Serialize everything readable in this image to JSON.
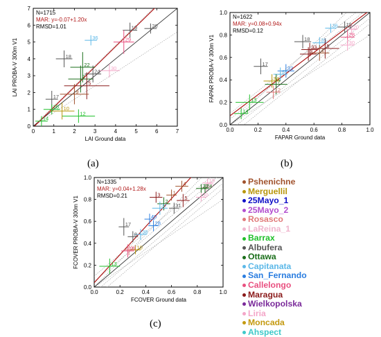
{
  "captions": [
    "(a)",
    "(b)",
    "(c)"
  ],
  "legend": [
    {
      "name": "Pshenichne",
      "color": "#a0522d"
    },
    {
      "name": "Merguellil",
      "color": "#b8960c"
    },
    {
      "name": "25Mayo_1",
      "color": "#1010c8"
    },
    {
      "name": "25Mayo_2",
      "color": "#b24fd0"
    },
    {
      "name": "Rosasco",
      "color": "#e07a7a"
    },
    {
      "name": "LaReina_1",
      "color": "#f0b6ce"
    },
    {
      "name": "Barrax",
      "color": "#1fbf2a"
    },
    {
      "name": "Albufera",
      "color": "#555555"
    },
    {
      "name": "Ottawa",
      "color": "#1a6e1a"
    },
    {
      "name": "Capitanata",
      "color": "#5cb8e8"
    },
    {
      "name": "San_Fernando",
      "color": "#2a7de0"
    },
    {
      "name": "Callelongo",
      "color": "#e95080"
    },
    {
      "name": "Maragua",
      "color": "#8a1a1a"
    },
    {
      "name": "Wielkopolska",
      "color": "#7a2a9a"
    },
    {
      "name": "Liria",
      "color": "#f4a6c8"
    },
    {
      "name": "Moncada",
      "color": "#c49a10"
    },
    {
      "name": "Ahspect",
      "color": "#3ec9c9"
    }
  ],
  "chart_data": [
    {
      "type": "scatter",
      "xlabel": "LAI Ground data",
      "ylabel": "LAI PROBA-V 300m V1",
      "xlim": [
        0,
        7
      ],
      "ylim": [
        0,
        7
      ],
      "xticks": [
        "0",
        "1",
        "2",
        "3",
        "4",
        "5",
        "6",
        "7"
      ],
      "yticks": [
        "0",
        "1",
        "2",
        "3",
        "4",
        "5",
        "6",
        "7"
      ],
      "stats": {
        "n": "N=1715",
        "mar": "MAR: y=-0.07+1.20x",
        "rmsd": "RMSD=1.01"
      },
      "points": [
        {
          "label": "19",
          "site": "Albufera",
          "x": 4.7,
          "y": 5.7,
          "ex": 0.35,
          "ey": 0.45
        },
        {
          "label": "20",
          "site": "Albufera",
          "x": 5.7,
          "y": 5.8,
          "ex": 0.3,
          "ey": 0.3
        },
        {
          "label": "36",
          "site": "Capitanata",
          "x": 2.8,
          "y": 5.1,
          "ex": 0.3,
          "ey": 0.3
        },
        {
          "label": "29",
          "site": "Callelongo",
          "x": 4.4,
          "y": 5.0,
          "ex": 0.5,
          "ey": 0.7
        },
        {
          "label": "18",
          "site": "Albufera",
          "x": 1.5,
          "y": 4.0,
          "ex": 0.4,
          "ey": 0.5
        },
        {
          "label": "22",
          "site": "Ottawa",
          "x": 2.4,
          "y": 3.5,
          "ex": 0.6,
          "ey": 0.9
        },
        {
          "label": "24",
          "site": "Albufera",
          "x": 2.9,
          "y": 3.1,
          "ex": 0.4,
          "ey": 0.5
        },
        {
          "label": "30",
          "site": "Liria",
          "x": 3.7,
          "y": 3.3,
          "ex": 0.5,
          "ey": 0.4
        },
        {
          "label": "2",
          "site": "Ottawa",
          "x": 2.3,
          "y": 2.8,
          "ex": 0.6,
          "ey": 0.8
        },
        {
          "label": "5",
          "site": "Maragua",
          "x": 2.6,
          "y": 2.4,
          "ex": 1.1,
          "ey": 0.8
        },
        {
          "label": "17",
          "site": "Albufera",
          "x": 0.9,
          "y": 1.6,
          "ex": 0.3,
          "ey": 0.5
        },
        {
          "label": "9",
          "site": "Pshenichne",
          "x": 2.0,
          "y": 1.9,
          "ex": 0.7,
          "ey": 0.6
        },
        {
          "label": "12",
          "site": "Barrax",
          "x": 2.2,
          "y": 0.6,
          "ex": 0.8,
          "ey": 0.4
        },
        {
          "label": "10",
          "site": "Merguellil",
          "x": 1.4,
          "y": 0.9,
          "ex": 0.6,
          "ey": 0.5
        },
        {
          "label": "25",
          "site": "Barrax",
          "x": 0.9,
          "y": 1.0,
          "ex": 0.4,
          "ey": 0.3
        },
        {
          "label": "14",
          "site": "Barrax",
          "x": 0.4,
          "y": 0.3,
          "ex": 0.3,
          "ey": 0.3
        }
      ]
    },
    {
      "type": "scatter",
      "xlabel": "FAPAR Ground data",
      "ylabel": "FAPAR PROBA-V 300m V1",
      "xlim": [
        0,
        1
      ],
      "ylim": [
        0,
        1
      ],
      "xticks": [
        "0.0",
        "0.2",
        "0.4",
        "0.6",
        "0.8",
        "1.0"
      ],
      "yticks": [
        "0.0",
        "0.2",
        "0.4",
        "0.6",
        "0.8",
        "1.0"
      ],
      "stats": {
        "n": "N=1622",
        "mar": "MAR: y=0.08+0.94x",
        "rmsd": "RMSD=0.12"
      },
      "points": [
        {
          "label": "19",
          "site": "Albufera",
          "x": 0.82,
          "y": 0.87,
          "ex": 0.05,
          "ey": 0.05
        },
        {
          "label": "36",
          "site": "Capitanata",
          "x": 0.72,
          "y": 0.86,
          "ex": 0.04,
          "ey": 0.04
        },
        {
          "label": "20",
          "site": "Liria",
          "x": 0.87,
          "y": 0.85,
          "ex": 0.04,
          "ey": 0.05
        },
        {
          "label": "28",
          "site": "Callelongo",
          "x": 0.84,
          "y": 0.78,
          "ex": 0.05,
          "ey": 0.06
        },
        {
          "label": "30",
          "site": "Liria",
          "x": 0.84,
          "y": 0.71,
          "ex": 0.05,
          "ey": 0.05
        },
        {
          "label": "18",
          "site": "Albufera",
          "x": 0.52,
          "y": 0.74,
          "ex": 0.06,
          "ey": 0.06
        },
        {
          "label": "35",
          "site": "Capitanata",
          "x": 0.64,
          "y": 0.73,
          "ex": 0.05,
          "ey": 0.05
        },
        {
          "label": "5",
          "site": "Maragua",
          "x": 0.68,
          "y": 0.68,
          "ex": 0.1,
          "ey": 0.09
        },
        {
          "label": "33",
          "site": "Maragua",
          "x": 0.57,
          "y": 0.67,
          "ex": 0.06,
          "ey": 0.06
        },
        {
          "label": "4",
          "site": "Pshenichne",
          "x": 0.64,
          "y": 0.64,
          "ex": 0.07,
          "ey": 0.07
        },
        {
          "label": "3",
          "site": "Maragua",
          "x": 0.56,
          "y": 0.63,
          "ex": 0.06,
          "ey": 0.06
        },
        {
          "label": "17",
          "site": "Albufera",
          "x": 0.22,
          "y": 0.52,
          "ex": 0.05,
          "ey": 0.07
        },
        {
          "label": "32",
          "site": "San_Fernando",
          "x": 0.4,
          "y": 0.48,
          "ex": 0.06,
          "ey": 0.06
        },
        {
          "label": "37",
          "site": "Capitanata",
          "x": 0.36,
          "y": 0.45,
          "ex": 0.05,
          "ey": 0.06
        },
        {
          "label": "34",
          "site": "Merguellil",
          "x": 0.3,
          "y": 0.39,
          "ex": 0.06,
          "ey": 0.06
        },
        {
          "label": "7",
          "site": "Ottawa",
          "x": 0.33,
          "y": 0.36,
          "ex": 0.08,
          "ey": 0.09
        },
        {
          "label": "12",
          "site": "Rosasco",
          "x": 0.31,
          "y": 0.29,
          "ex": 0.05,
          "ey": 0.06
        },
        {
          "label": "13",
          "site": "Barrax",
          "x": 0.14,
          "y": 0.2,
          "ex": 0.1,
          "ey": 0.07
        },
        {
          "label": "14",
          "site": "Barrax",
          "x": 0.08,
          "y": 0.1,
          "ex": 0.05,
          "ey": 0.05
        }
      ]
    },
    {
      "type": "scatter",
      "xlabel": "FCOVER Ground data",
      "ylabel": "FCOVER PROBA-V 300m V1",
      "xlim": [
        0,
        1
      ],
      "ylim": [
        0,
        1
      ],
      "xticks": [
        "0.0",
        "0.2",
        "0.4",
        "0.6",
        "0.8",
        "1.0"
      ],
      "yticks": [
        "0.0",
        "0.2",
        "0.4",
        "0.6",
        "0.8",
        "1.0"
      ],
      "stats": {
        "n": "N=1335",
        "mar": "MAR: y=0.04+1.28x",
        "rmsd": "RMSD=0.21"
      },
      "points": [
        {
          "label": "19",
          "site": "Liria",
          "x": 0.88,
          "y": 0.95,
          "ex": 0.04,
          "ey": 0.04
        },
        {
          "label": "20",
          "site": "Liria",
          "x": 0.87,
          "y": 0.91,
          "ex": 0.04,
          "ey": 0.04
        },
        {
          "label": "4",
          "site": "Pshenichne",
          "x": 0.68,
          "y": 0.92,
          "ex": 0.05,
          "ey": 0.05
        },
        {
          "label": "22",
          "site": "Ottawa",
          "x": 0.83,
          "y": 0.9,
          "ex": 0.04,
          "ey": 0.04
        },
        {
          "label": "24",
          "site": "Ottawa",
          "x": 0.86,
          "y": 0.9,
          "ex": 0.03,
          "ey": 0.04
        },
        {
          "label": "3",
          "site": "Maragua",
          "x": 0.48,
          "y": 0.82,
          "ex": 0.05,
          "ey": 0.05
        },
        {
          "label": "1",
          "site": "Pshenichne",
          "x": 0.6,
          "y": 0.84,
          "ex": 0.04,
          "ey": 0.05
        },
        {
          "label": "30",
          "site": "Liria",
          "x": 0.83,
          "y": 0.82,
          "ex": 0.04,
          "ey": 0.04
        },
        {
          "label": "2",
          "site": "Ottawa",
          "x": 0.54,
          "y": 0.76,
          "ex": 0.05,
          "ey": 0.06
        },
        {
          "label": "37",
          "site": "Capitanata",
          "x": 0.51,
          "y": 0.72,
          "ex": 0.06,
          "ey": 0.06
        },
        {
          "label": "31",
          "site": "Albufera",
          "x": 0.62,
          "y": 0.72,
          "ex": 0.04,
          "ey": 0.05
        },
        {
          "label": "5",
          "site": "Maragua",
          "x": 0.69,
          "y": 0.79,
          "ex": 0.05,
          "ey": 0.06
        },
        {
          "label": "40",
          "site": "San_Fernando",
          "x": 0.43,
          "y": 0.62,
          "ex": 0.04,
          "ey": 0.05
        },
        {
          "label": "28",
          "site": "San_Fernando",
          "x": 0.46,
          "y": 0.56,
          "ex": 0.04,
          "ey": 0.05
        },
        {
          "label": "17",
          "site": "Albufera",
          "x": 0.23,
          "y": 0.55,
          "ex": 0.04,
          "ey": 0.08
        },
        {
          "label": "8",
          "site": "Albufera",
          "x": 0.3,
          "y": 0.46,
          "ex": 0.04,
          "ey": 0.05
        },
        {
          "label": "38",
          "site": "Capitanata",
          "x": 0.36,
          "y": 0.48,
          "ex": 0.05,
          "ey": 0.05
        },
        {
          "label": "15",
          "site": "Callelongo",
          "x": 0.26,
          "y": 0.33,
          "ex": 0.05,
          "ey": 0.06
        },
        {
          "label": "12",
          "site": "Rosasco",
          "x": 0.27,
          "y": 0.34,
          "ex": 0.04,
          "ey": 0.05
        },
        {
          "label": "10",
          "site": "Merguellil",
          "x": 0.32,
          "y": 0.34,
          "ex": 0.04,
          "ey": 0.04
        },
        {
          "label": "13",
          "site": "Barrax",
          "x": 0.12,
          "y": 0.19,
          "ex": 0.08,
          "ey": 0.07
        }
      ]
    }
  ]
}
